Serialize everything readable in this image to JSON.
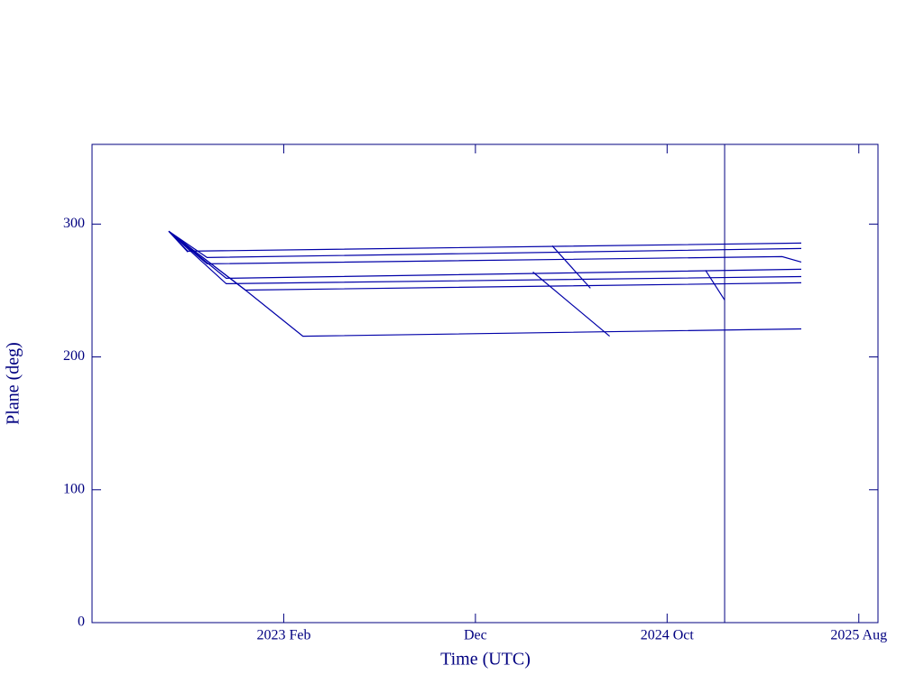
{
  "chart_data": {
    "type": "line",
    "xlabel": "Time (UTC)",
    "ylabel": "Plane (deg)",
    "xlim": [
      "2022-04",
      "2025-09"
    ],
    "xticks": [
      {
        "value": "2023-02",
        "label": "2023 Feb"
      },
      {
        "value": "2023-12",
        "label": "Dec"
      },
      {
        "value": "2024-10",
        "label": "2024 Oct"
      },
      {
        "value": "2025-08",
        "label": "2025 Aug"
      }
    ],
    "ylim": [
      0,
      360
    ],
    "yticks": [
      0,
      100,
      200,
      300
    ],
    "color": "#0000a8",
    "axis_color": "#000080",
    "vline_x": "2025-01",
    "series": [
      {
        "x": [
          "2022-08",
          "2022-09"
        ],
        "values": [
          294.6,
          278.9
        ]
      },
      {
        "x": [
          "2022-08",
          "2022-09",
          "2025-05"
        ],
        "values": [
          294.6,
          279.6,
          285.7
        ]
      },
      {
        "x": [
          "2022-08",
          "2022-10",
          "2025-05"
        ],
        "values": [
          294.6,
          274.8,
          281.6
        ]
      },
      {
        "x": [
          "2022-08",
          "2022-10",
          "2025-04",
          "2025-05"
        ],
        "values": [
          294.6,
          270.1,
          275.5,
          271.4
        ]
      },
      {
        "x": [
          "2022-08",
          "2022-11",
          "2025-05"
        ],
        "values": [
          294.6,
          259.2,
          266.0
        ]
      },
      {
        "x": [
          "2022-08",
          "2022-11",
          "2025-05"
        ],
        "values": [
          294.6,
          255.1,
          260.5
        ]
      },
      {
        "x": [
          "2022-08",
          "2022-12",
          "2025-05"
        ],
        "values": [
          294.6,
          250.3,
          255.8
        ]
      },
      {
        "x": [
          "2022-08",
          "2022-12",
          "2023-03",
          "2025-05"
        ],
        "values": [
          294.6,
          250.3,
          215.6,
          221.1
        ]
      },
      {
        "x": [
          "2024-04",
          "2024-06"
        ],
        "values": [
          283.7,
          251.7
        ]
      },
      {
        "x": [
          "2024-03",
          "2024-07"
        ],
        "values": [
          263.9,
          215.6
        ]
      },
      {
        "x": [
          "2024-12",
          "2025-01"
        ],
        "values": [
          265.3,
          242.9
        ]
      }
    ]
  }
}
